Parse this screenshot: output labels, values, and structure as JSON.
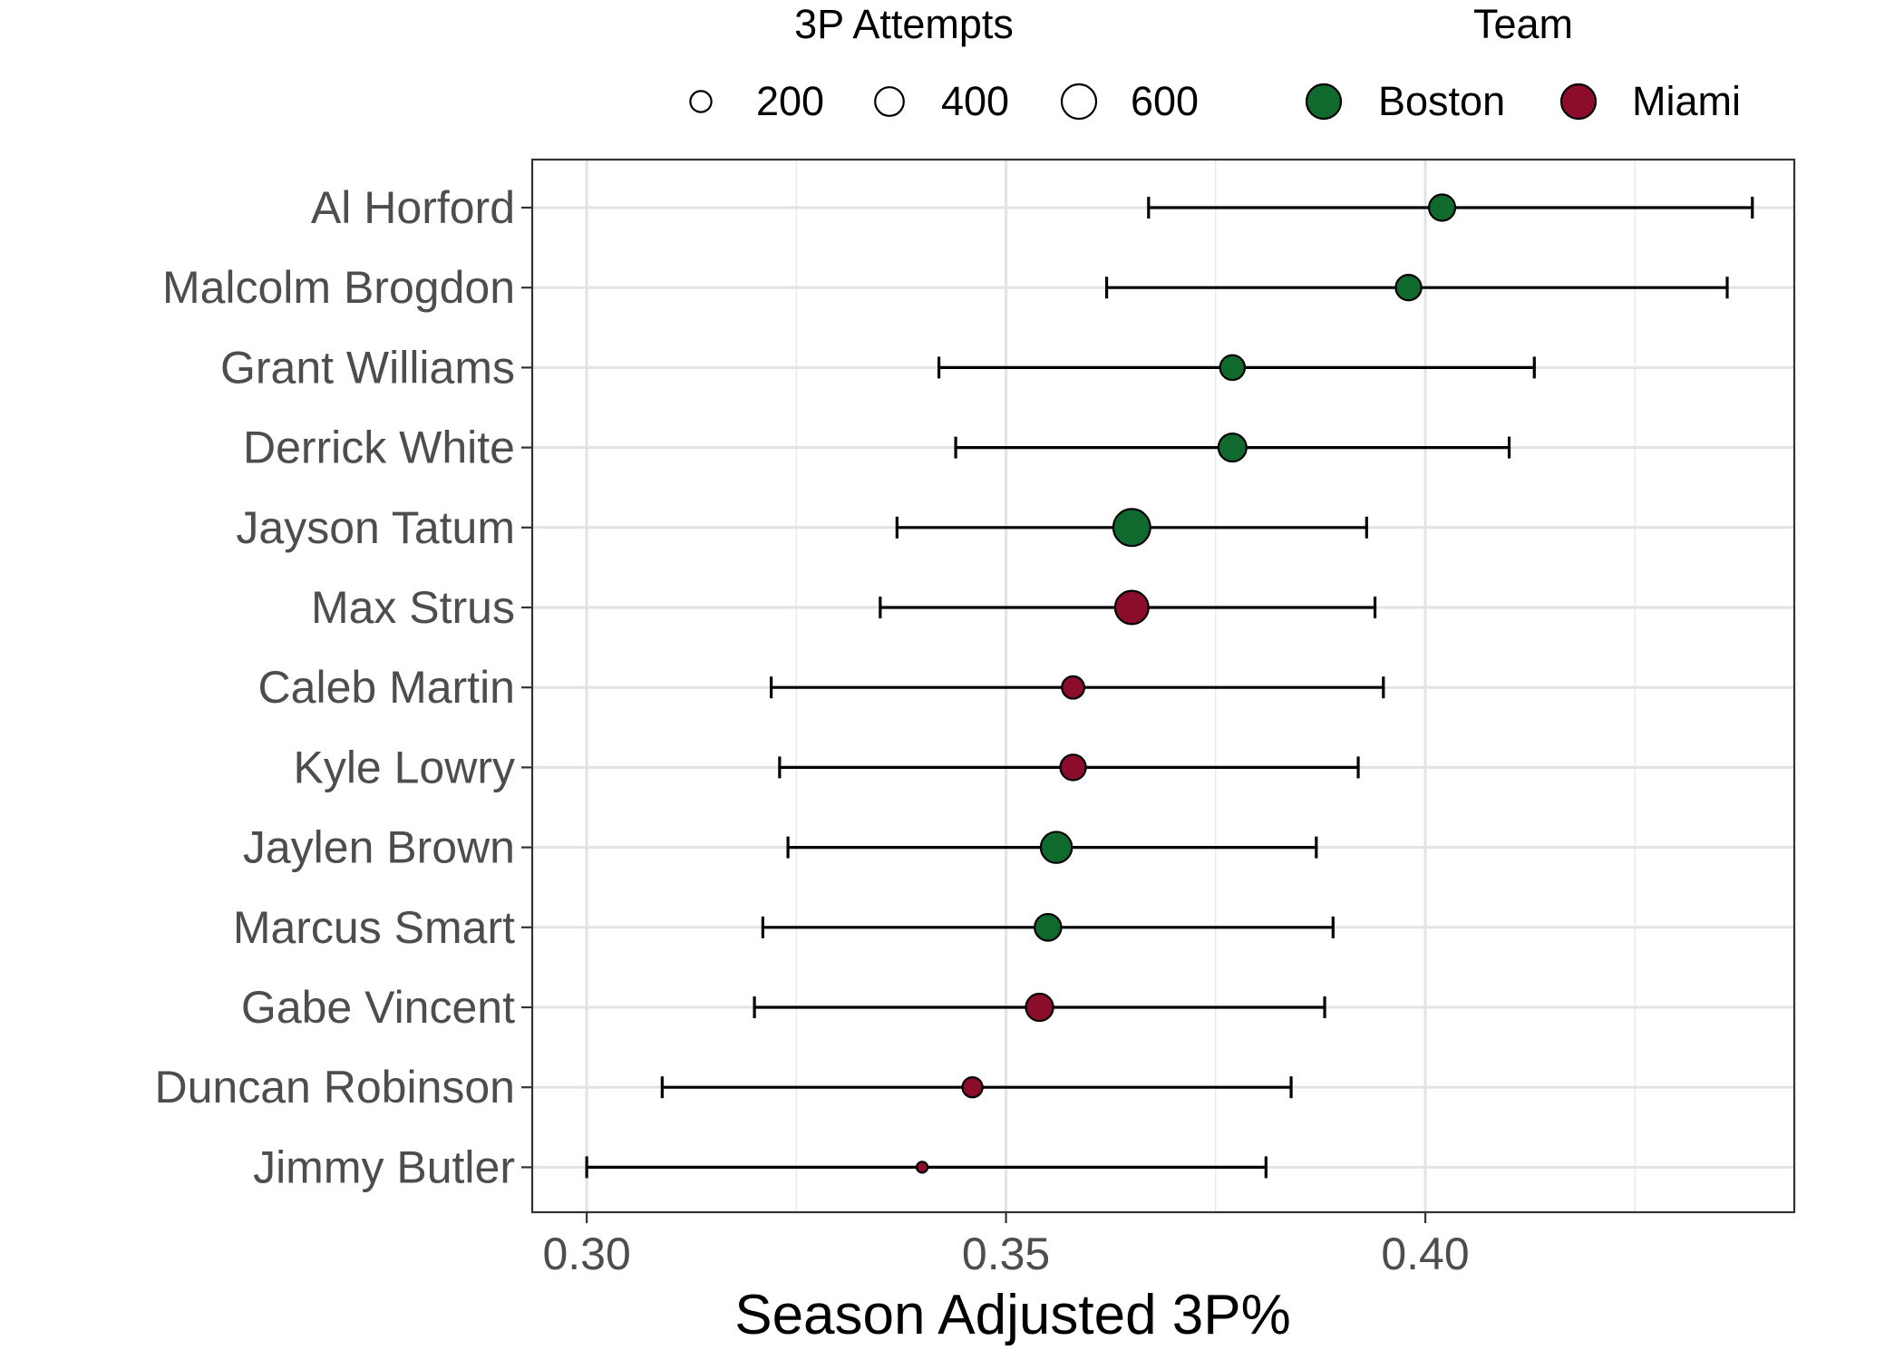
{
  "chart_data": {
    "type": "scatter",
    "xlabel": "Season Adjusted 3P%",
    "xlim": [
      0.2935,
      0.444
    ],
    "x_ticks": [
      "0.30",
      "0.35",
      "0.40"
    ],
    "x_tick_values": [
      0.3,
      0.35,
      0.4
    ],
    "x_minor_grid": [
      0.325,
      0.375,
      0.425
    ],
    "grid": true,
    "legend_position": "top",
    "colors": {
      "Boston": "#116a2d",
      "Miami": "#8c0d2b"
    },
    "legend": {
      "size_title": "3P Attempts",
      "size_entries": [
        {
          "label": "200",
          "attempts": 200
        },
        {
          "label": "400",
          "attempts": 400
        },
        {
          "label": "600",
          "attempts": 600
        }
      ],
      "color_title": "Team",
      "color_entries": [
        {
          "label": "Boston",
          "team": "Boston"
        },
        {
          "label": "Miami",
          "team": "Miami"
        }
      ]
    },
    "players": [
      {
        "name": "Al Horford",
        "team": "Boston",
        "value": 0.402,
        "low": 0.367,
        "high": 0.439,
        "attempts": 330
      },
      {
        "name": "Malcolm Brogdon",
        "team": "Boston",
        "value": 0.398,
        "low": 0.362,
        "high": 0.436,
        "attempts": 310
      },
      {
        "name": "Grant Williams",
        "team": "Boston",
        "value": 0.377,
        "low": 0.342,
        "high": 0.413,
        "attempts": 290
      },
      {
        "name": "Derrick White",
        "team": "Boston",
        "value": 0.377,
        "low": 0.344,
        "high": 0.41,
        "attempts": 380
      },
      {
        "name": "Jayson Tatum",
        "team": "Boston",
        "value": 0.365,
        "low": 0.337,
        "high": 0.393,
        "attempts": 700
      },
      {
        "name": "Max Strus",
        "team": "Miami",
        "value": 0.365,
        "low": 0.335,
        "high": 0.394,
        "attempts": 560
      },
      {
        "name": "Caleb Martin",
        "team": "Miami",
        "value": 0.358,
        "low": 0.322,
        "high": 0.395,
        "attempts": 230
      },
      {
        "name": "Kyle Lowry",
        "team": "Miami",
        "value": 0.358,
        "low": 0.323,
        "high": 0.392,
        "attempts": 310
      },
      {
        "name": "Jaylen Brown",
        "team": "Boston",
        "value": 0.356,
        "low": 0.324,
        "high": 0.387,
        "attempts": 480
      },
      {
        "name": "Marcus Smart",
        "team": "Boston",
        "value": 0.355,
        "low": 0.321,
        "high": 0.389,
        "attempts": 340
      },
      {
        "name": "Gabe Vincent",
        "team": "Miami",
        "value": 0.354,
        "low": 0.32,
        "high": 0.388,
        "attempts": 360
      },
      {
        "name": "Duncan Robinson",
        "team": "Miami",
        "value": 0.346,
        "low": 0.309,
        "high": 0.384,
        "attempts": 180
      },
      {
        "name": "Jimmy Butler",
        "team": "Miami",
        "value": 0.34,
        "low": 0.3,
        "high": 0.381,
        "attempts": 40
      }
    ]
  }
}
